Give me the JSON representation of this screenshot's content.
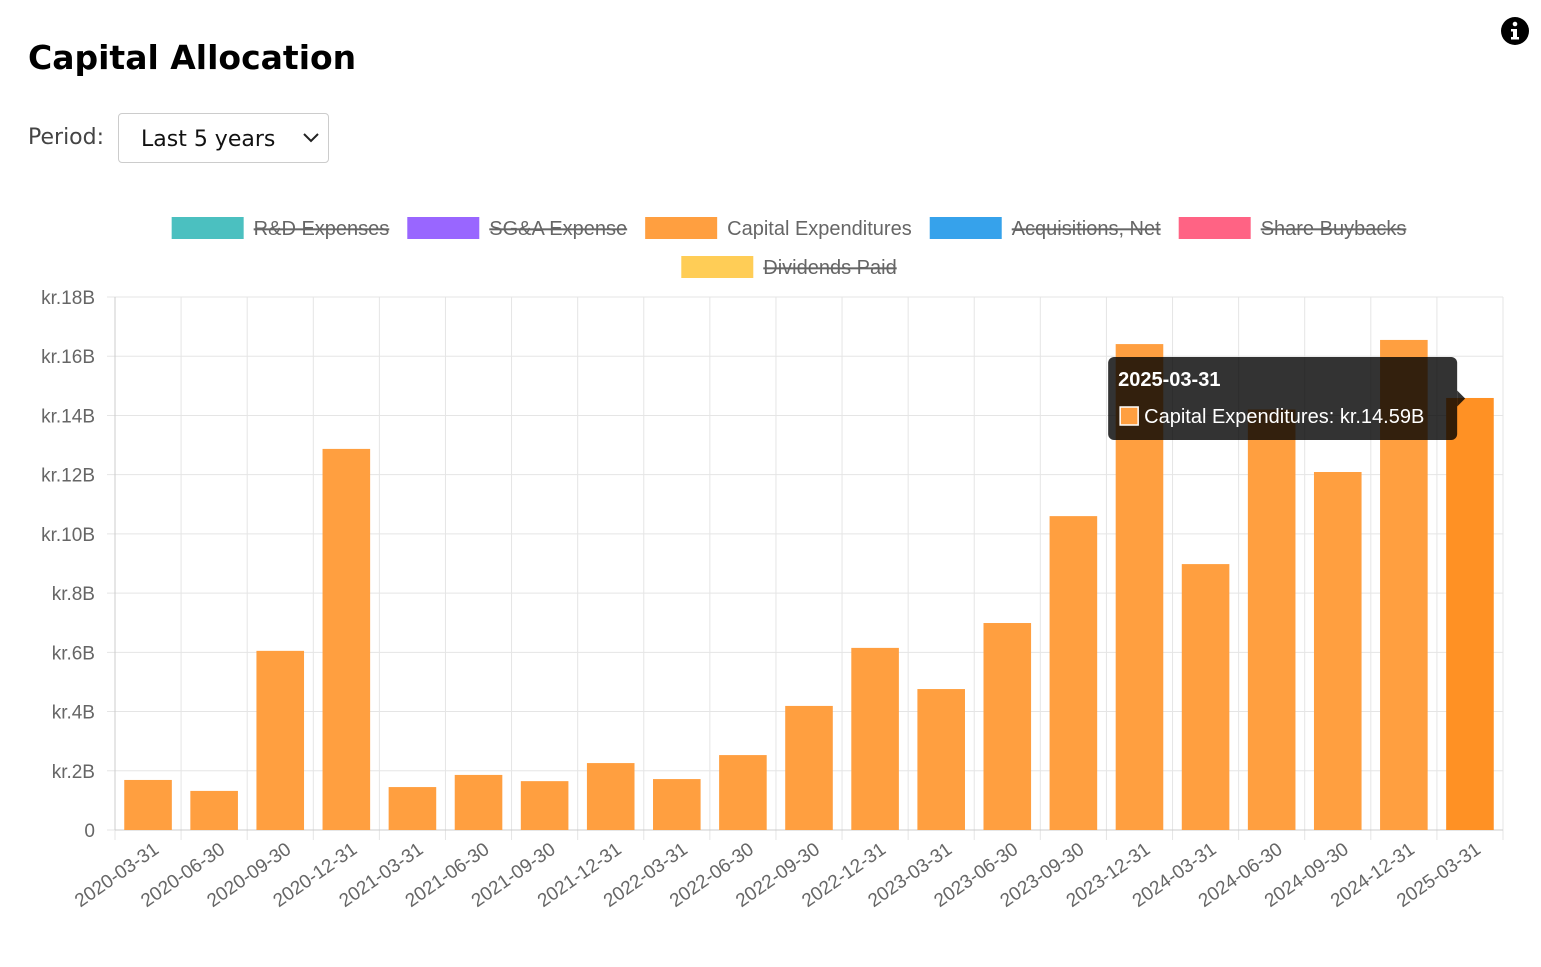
{
  "title": "Capital Allocation",
  "period": {
    "label": "Period:",
    "selected": "Last 5 years"
  },
  "chart_data": {
    "type": "bar",
    "categories": [
      "2020-03-31",
      "2020-06-30",
      "2020-09-30",
      "2020-12-31",
      "2021-03-31",
      "2021-06-30",
      "2021-09-30",
      "2021-12-31",
      "2022-03-31",
      "2022-06-30",
      "2022-09-30",
      "2022-12-31",
      "2023-03-31",
      "2023-06-30",
      "2023-09-30",
      "2023-12-31",
      "2024-03-31",
      "2024-06-30",
      "2024-09-30",
      "2024-12-31",
      "2025-03-31"
    ],
    "series": [
      {
        "name": "R&D Expenses",
        "color": "#4bc0c0",
        "hidden": true
      },
      {
        "name": "SG&A Expense",
        "color": "#9966ff",
        "hidden": true
      },
      {
        "name": "Capital Expenditures",
        "color": "#ff9f40",
        "hover_color": "#ff9124",
        "hidden": false,
        "values": [
          1.69,
          1.32,
          6.05,
          12.87,
          1.45,
          1.86,
          1.65,
          2.26,
          1.72,
          2.53,
          4.19,
          6.15,
          4.76,
          6.99,
          10.6,
          16.41,
          8.98,
          14.2,
          12.09,
          16.55,
          14.59
        ]
      },
      {
        "name": "Acquisitions, Net",
        "color": "#36a2eb",
        "hidden": true
      },
      {
        "name": "Share Buybacks",
        "color": "#ff6384",
        "hidden": true
      },
      {
        "name": "Dividends Paid",
        "color": "#ffcd56",
        "hidden": true
      }
    ],
    "ylim": [
      0,
      18
    ],
    "yticks": [
      0,
      {
        "value": 2,
        "label": "kr.2B"
      },
      {
        "value": 4,
        "label": "kr.4B"
      },
      {
        "value": 6,
        "label": "kr.6B"
      },
      {
        "value": 8,
        "label": "kr.8B"
      },
      {
        "value": 10,
        "label": "kr.10B"
      },
      {
        "value": 12,
        "label": "kr.12B"
      },
      {
        "value": 14,
        "label": "kr.14B"
      },
      {
        "value": 16,
        "label": "kr.16B"
      },
      {
        "value": 18,
        "label": "kr.18B"
      }
    ],
    "grid": true,
    "legend": "top",
    "active_index": 20,
    "tooltip": {
      "title": "2025-03-31",
      "label": "Capital Expenditures: kr.14.59B"
    }
  }
}
